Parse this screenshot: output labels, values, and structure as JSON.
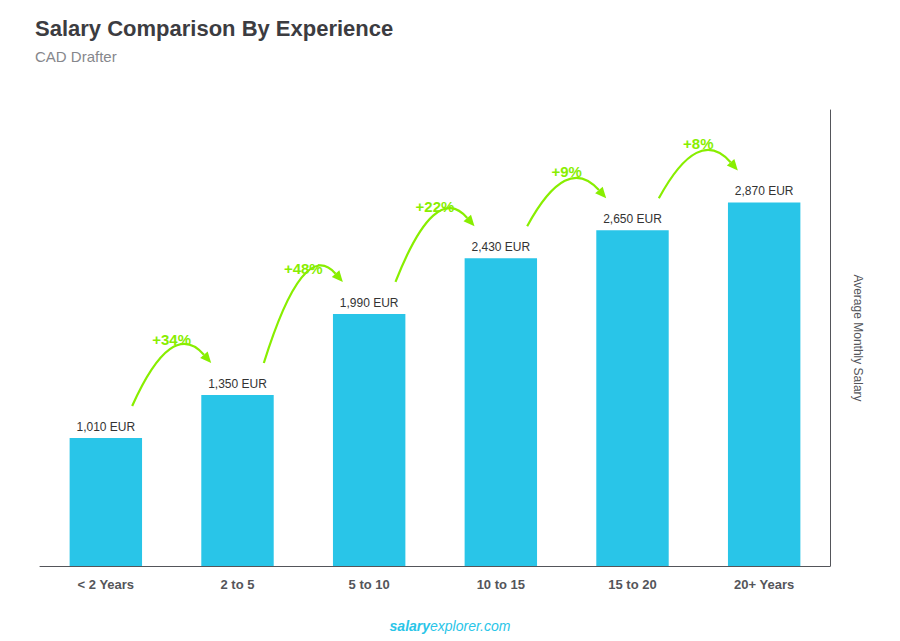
{
  "chart_data": {
    "type": "bar",
    "title": "Salary Comparison By Experience",
    "subtitle": "CAD Drafter",
    "categories": [
      "< 2 Years",
      "2 to 5",
      "5 to 10",
      "10 to 15",
      "15 to 20",
      "20+ Years"
    ],
    "values": [
      1010,
      1350,
      1990,
      2430,
      2650,
      2870
    ],
    "value_labels": [
      "1,010 EUR",
      "1,350 EUR",
      "1,990 EUR",
      "2,430 EUR",
      "2,650 EUR",
      "2,870 EUR"
    ],
    "data_labels": true,
    "color": "#29c5e8",
    "ylabel": "Average Monthly Salary",
    "ylim": [
      0,
      3600
    ],
    "grid": false,
    "tick_labels": "x",
    "annotations": [
      {
        "text": "+34%",
        "from": "< 2 Years",
        "to": "2 to 5",
        "color": "#88ee00"
      },
      {
        "text": "+48%",
        "from": "2 to 5",
        "to": "5 to 10",
        "color": "#88ee00"
      },
      {
        "text": "+22%",
        "from": "5 to 10",
        "to": "10 to 15",
        "color": "#88ee00"
      },
      {
        "text": "+9%",
        "from": "10 to 15",
        "to": "15 to 20",
        "color": "#88ee00"
      },
      {
        "text": "+8%",
        "from": "15 to 20",
        "to": "20+ Years",
        "color": "#88ee00"
      },
      {
        "text": "salary",
        "color": "#29c5e8"
      },
      {
        "text": "explorer.com",
        "color": "#29c5e8"
      }
    ]
  }
}
